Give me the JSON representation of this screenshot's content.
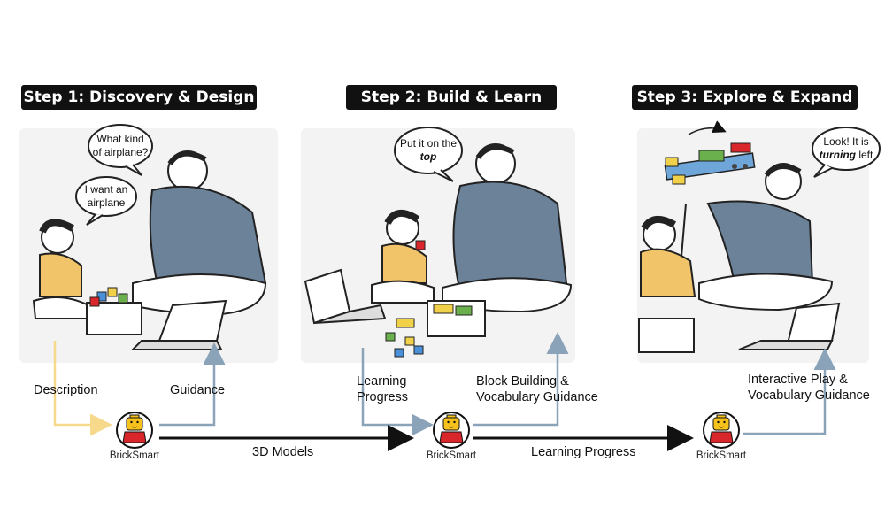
{
  "steps": [
    {
      "title": "Step 1: Discovery & Design"
    },
    {
      "title": "Step 2: Build & Learn"
    },
    {
      "title": "Step 3: Explore & Expand"
    }
  ],
  "bubbles": {
    "s1_parent": "What kind of airplane?",
    "s1_child": "I want an airplane",
    "s2_pre": "Put it on the ",
    "s2_em": "top",
    "s3_pre": "Look! It is ",
    "s3_em": "turning",
    "s3_post": " left"
  },
  "flow_labels": {
    "description": "Description",
    "guidance": "Guidance",
    "learning_progress_1": "Learning",
    "learning_progress_2": "Progress",
    "block_building_1": "Block Building &",
    "block_building_2": "Vocabulary Guidance",
    "interactive_1": "Interactive Play &",
    "interactive_2": "Vocabulary Guidance",
    "models_3d": "3D Models",
    "learning_progress_line": "Learning Progress"
  },
  "agent": {
    "name": "BrickSmart"
  },
  "colors": {
    "description_arrow": "#f7d98b",
    "blue_arrow": "#8aa3b8",
    "black_arrow": "#111111",
    "shirt_parent": "#6b8299",
    "shirt_child": "#f2c46a",
    "avatar_head": "#f6c21b",
    "avatar_body": "#d8262b"
  }
}
